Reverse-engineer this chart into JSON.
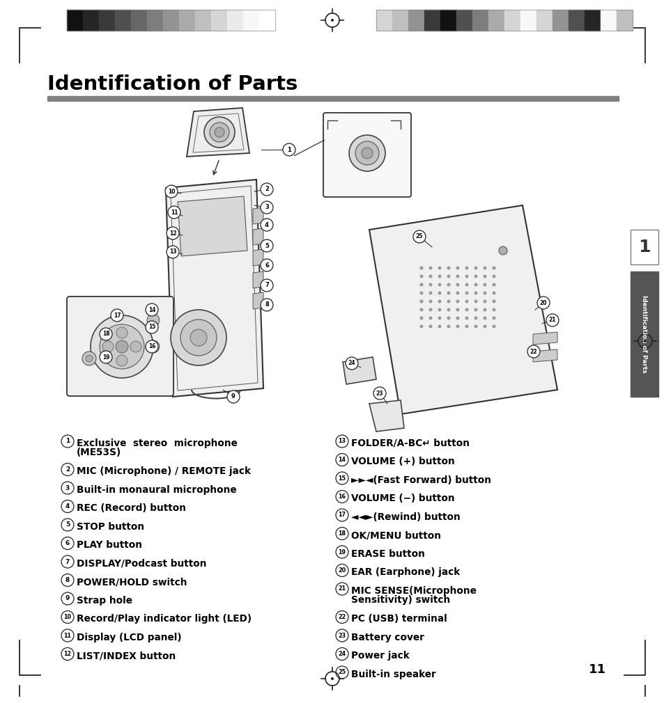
{
  "title": "Identification of Parts",
  "title_fontsize": 21,
  "title_fontweight": "bold",
  "rule_color": "#808080",
  "bg_color": "#ffffff",
  "left_col_items": [
    {
      "num": "1",
      "text": "Exclusive  stereo  microphone\n(ME53S)",
      "wrap": true
    },
    {
      "num": "2",
      "text": "MIC (Microphone) / REMOTE jack",
      "wrap": false
    },
    {
      "num": "3",
      "text": "Built-in monaural microphone",
      "wrap": false
    },
    {
      "num": "4",
      "text": "REC (Record) button",
      "wrap": false
    },
    {
      "num": "5",
      "text": "STOP button",
      "wrap": false
    },
    {
      "num": "6",
      "text": "PLAY button",
      "wrap": false
    },
    {
      "num": "7",
      "text": "DISPLAY/Podcast button",
      "wrap": false
    },
    {
      "num": "8",
      "text": "POWER/HOLD switch",
      "wrap": false
    },
    {
      "num": "9",
      "text": "Strap hole",
      "wrap": false
    },
    {
      "num": "10",
      "text": "Record/Play indicator light (LED)",
      "wrap": false
    },
    {
      "num": "11",
      "text": "Display (LCD panel)",
      "wrap": false
    },
    {
      "num": "12",
      "text": "LIST/INDEX button",
      "wrap": false
    }
  ],
  "right_col_items": [
    {
      "num": "13",
      "text": "FOLDER/A-BC↵ button",
      "wrap": false
    },
    {
      "num": "14",
      "text": "VOLUME (+) button",
      "wrap": false
    },
    {
      "num": "15",
      "text": "►►◄(Fast Forward) button",
      "wrap": false
    },
    {
      "num": "16",
      "text": "VOLUME (−) button",
      "wrap": false
    },
    {
      "num": "17",
      "text": "◄◄►(Rewind) button",
      "wrap": false
    },
    {
      "num": "18",
      "text": "OK/MENU button",
      "wrap": false
    },
    {
      "num": "19",
      "text": "ERASE button",
      "wrap": false
    },
    {
      "num": "20",
      "text": "EAR (Earphone) jack",
      "wrap": false
    },
    {
      "num": "21",
      "text": "MIC SENSE(Microphone\nSensitivity) switch",
      "wrap": true
    },
    {
      "num": "22",
      "text": "PC (USB) terminal",
      "wrap": false
    },
    {
      "num": "23",
      "text": "Battery cover",
      "wrap": false
    },
    {
      "num": "24",
      "text": "Power jack",
      "wrap": false
    },
    {
      "num": "25",
      "text": "Built-in speaker",
      "wrap": false
    }
  ],
  "page_number": "11",
  "side_tab_text": "Identification of Parts",
  "bar_left": [
    "#111111",
    "#252525",
    "#3a3a3a",
    "#505050",
    "#676767",
    "#7d7d7d",
    "#939393",
    "#aaaaaa",
    "#bfbfbf",
    "#d5d5d5",
    "#ebebeb",
    "#f8f8f8",
    "#ffffff"
  ],
  "bar_right": [
    "#d5d5d5",
    "#bfbfbf",
    "#939393",
    "#3a3a3a",
    "#111111",
    "#505050",
    "#7d7d7d",
    "#aaaaaa",
    "#d5d5d5",
    "#f8f8f8",
    "#d5d5d5",
    "#939393",
    "#505050",
    "#252525",
    "#f8f8f8",
    "#bfbfbf"
  ]
}
